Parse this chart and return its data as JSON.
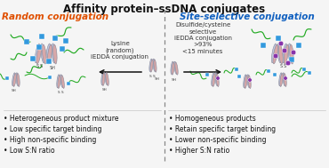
{
  "title": "Affinity protein–ssDNA conjugates",
  "left_heading": "Random conjugation",
  "right_heading": "Site-selective conjugation",
  "left_label": "Lysine\n(random)\niEDDA conjugation",
  "right_label": "Disulfide/cysteine\nselective\niEDDA conjugation\n>93%\n<15 minutes",
  "left_bullets": [
    "Heterogeneous product mixture",
    "Low specific target binding",
    "High non-specific binding",
    "Low S:N ratio"
  ],
  "right_bullets": [
    "Homogeneous products",
    "Retain specific target binding",
    "Lower non-specific binding",
    "Higher S:N ratio"
  ],
  "bg_color": "#f5f5f5",
  "title_color": "#111111",
  "left_color": "#e05000",
  "right_color": "#1060c0",
  "bullet_color": "#111111",
  "divider_color": "#888888",
  "arrow_color": "#111111",
  "helix_color1": "#c0c8e0",
  "helix_color2": "#d8a8a8",
  "helix_edge": "#888899",
  "dna_color": "#22aa22",
  "dot_blue": "#3399dd",
  "dot_purple": "#8833aa",
  "label_color": "#333333"
}
